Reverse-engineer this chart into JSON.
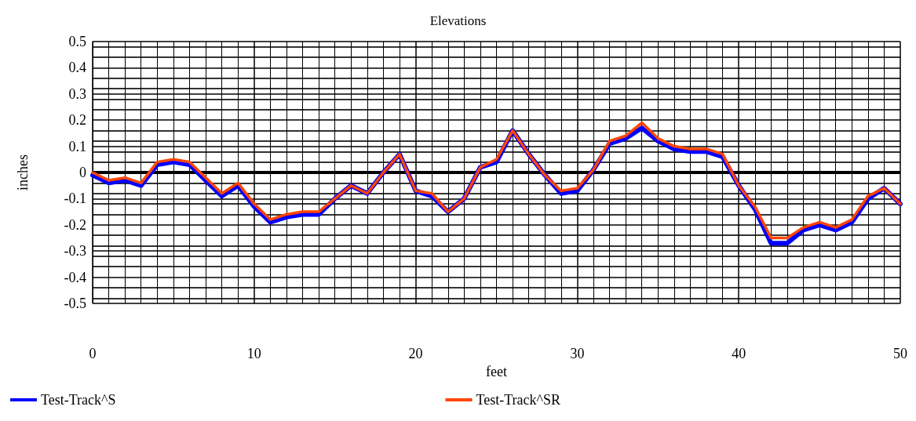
{
  "chart_data": {
    "type": "line",
    "title": "Elevations",
    "xlabel": "feet",
    "ylabel": "inches",
    "x": [
      0,
      1,
      2,
      3,
      4,
      5,
      6,
      7,
      8,
      9,
      10,
      11,
      12,
      13,
      14,
      15,
      16,
      17,
      18,
      19,
      20,
      21,
      22,
      23,
      24,
      25,
      26,
      27,
      28,
      29,
      30,
      31,
      32,
      33,
      34,
      35,
      36,
      37,
      38,
      39,
      40,
      41,
      42,
      43,
      44,
      45,
      46,
      47,
      48,
      49,
      50
    ],
    "series": [
      {
        "name": "Test-Track^S",
        "color": "#0000ff",
        "values": [
          -0.01,
          -0.04,
          -0.03,
          -0.05,
          0.03,
          0.04,
          0.03,
          -0.03,
          -0.09,
          -0.05,
          -0.13,
          -0.19,
          -0.17,
          -0.16,
          -0.16,
          -0.1,
          -0.05,
          -0.08,
          0,
          0.07,
          -0.07,
          -0.09,
          -0.15,
          -0.1,
          0.02,
          0.04,
          0.16,
          0.07,
          -0.01,
          -0.08,
          -0.07,
          0.01,
          0.11,
          0.13,
          0.17,
          0.12,
          0.09,
          0.08,
          0.08,
          0.06,
          -0.05,
          -0.14,
          -0.27,
          -0.27,
          -0.22,
          -0.2,
          -0.22,
          -0.19,
          -0.1,
          -0.06,
          -0.12
        ]
      },
      {
        "name": "Test-Track^SR",
        "color": "#ff4500",
        "values": [
          0,
          -0.03,
          -0.02,
          -0.04,
          0.04,
          0.05,
          0.04,
          -0.02,
          -0.08,
          -0.04,
          -0.12,
          -0.18,
          -0.16,
          -0.15,
          -0.15,
          -0.1,
          -0.05,
          -0.08,
          0,
          0.07,
          -0.07,
          -0.08,
          -0.15,
          -0.1,
          0.02,
          0.05,
          0.16,
          0.07,
          -0.01,
          -0.07,
          -0.06,
          0.01,
          0.12,
          0.14,
          0.19,
          0.13,
          0.1,
          0.09,
          0.09,
          0.07,
          -0.05,
          -0.13,
          -0.25,
          -0.25,
          -0.21,
          -0.19,
          -0.21,
          -0.18,
          -0.09,
          -0.06,
          -0.12
        ]
      }
    ],
    "xlim": [
      0,
      50
    ],
    "xticks": [
      0,
      10,
      20,
      30,
      40,
      50
    ],
    "ylim": [
      -0.5,
      0.5
    ],
    "yticks": [
      -0.5,
      -0.4,
      -0.3,
      -0.2,
      -0.1,
      0,
      0.1,
      0.2,
      0.3,
      0.4,
      0.5
    ],
    "ref_lines": [
      {
        "axis": "y",
        "value": 0,
        "color": "#000000"
      }
    ],
    "grid": true,
    "legend": "bottom",
    "marker": "none",
    "line_style": "solid"
  }
}
